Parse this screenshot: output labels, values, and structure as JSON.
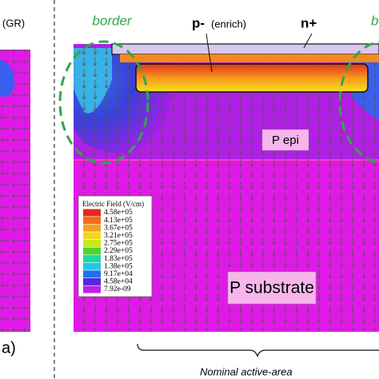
{
  "left_panel": {
    "label": "(GR)",
    "figure_label": "a)"
  },
  "right_panel": {
    "border_left": "border",
    "border_right": "b",
    "p_minus": "p-",
    "enrich": "(enrich)",
    "n_plus": "n+",
    "p_epi": "P epi",
    "p_substrate": "P substrate",
    "active_area": "Nominal active-area"
  },
  "legend": {
    "title": "Electric Field (V/cm)",
    "entries": [
      "4.58e+05",
      "4.13e+05",
      "3.67e+05",
      "3.21e+05",
      "2.75e+05",
      "2.29e+05",
      "1.83e+05",
      "1.38e+05",
      "9.17e+04",
      "4.58e+04",
      "7.92e-09"
    ]
  }
}
